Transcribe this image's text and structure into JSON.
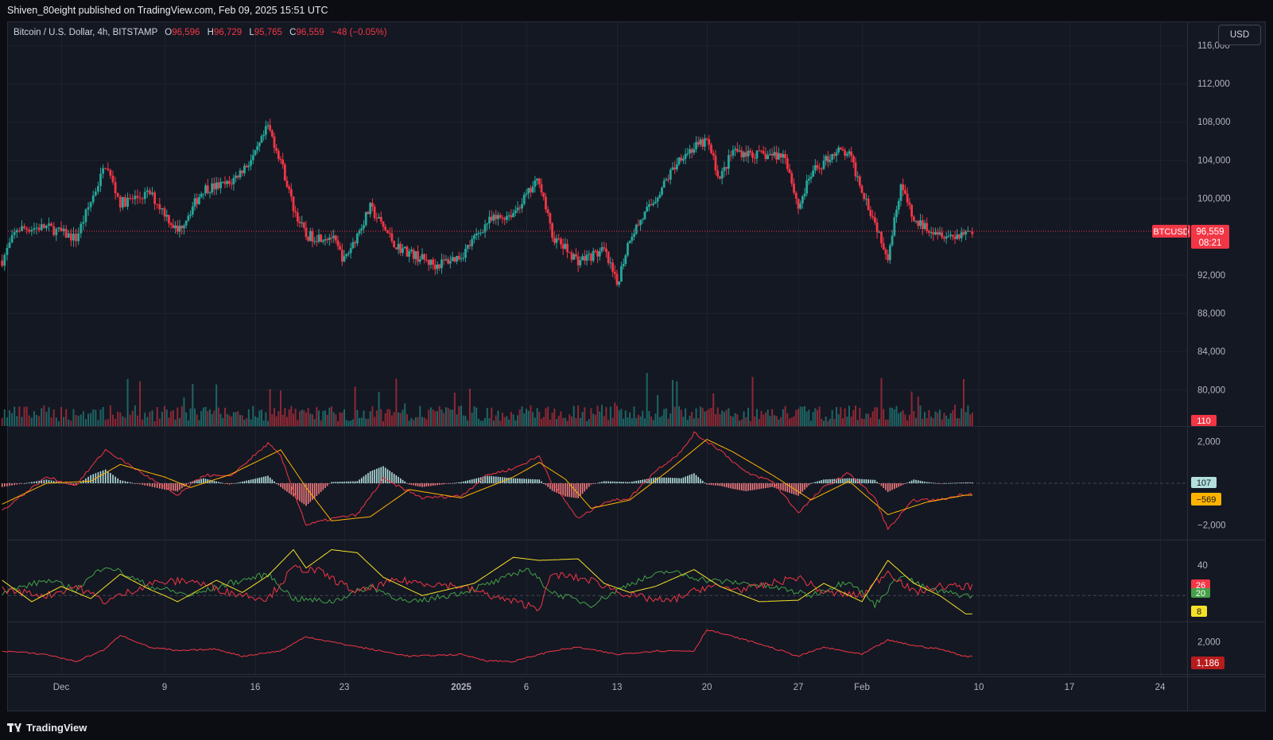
{
  "header": {
    "publisher_line": "Shiven_80eight published on TradingView.com, Feb 09, 2025 15:51 UTC"
  },
  "legend": {
    "symbol": "Bitcoin / U.S. Dollar, 4h, BITSTAMP",
    "o_label": "O",
    "o_value": "96,596",
    "h_label": "H",
    "h_value": "96,729",
    "l_label": "L",
    "l_value": "95,765",
    "c_label": "C",
    "c_value": "96,559",
    "change": "−48 (−0.05%)"
  },
  "currency_button": "USD",
  "brand": {
    "name": "TradingView"
  },
  "colors": {
    "up": "#26a69a",
    "down": "#f23645",
    "macd_line": "#f23645",
    "signal_line": "#ffb300",
    "adx": "#f5e028",
    "di_plus": "#43a047",
    "di_minus": "#f23645",
    "bg": "#141823",
    "grid": "#1e222d"
  },
  "chart_data": [
    {
      "type": "candlestick",
      "symbol": "BTCUSD",
      "interval": "4h",
      "exchange": "BITSTAMP",
      "y_ticks": [
        80000,
        84000,
        88000,
        92000,
        96000,
        100000,
        104000,
        108000,
        112000,
        116000
      ],
      "y_tick_labels": [
        "80,000",
        "84,000",
        "88,000",
        "92,000",
        "96,000",
        "100,000",
        "104,000",
        "108,000",
        "112,000",
        "116,000"
      ],
      "ylim": [
        76200,
        118400
      ],
      "x_labels": [
        "Dec",
        "9",
        "16",
        "23",
        "2025",
        "6",
        "13",
        "20",
        "27",
        "Feb",
        "10",
        "17",
        "24"
      ],
      "price_path": [
        {
          "t": "2024-11-28",
          "p": 93500
        },
        {
          "t": "2024-11-29",
          "p": 96800
        },
        {
          "t": "2024-12-01",
          "p": 97000
        },
        {
          "t": "2024-12-03",
          "p": 95800
        },
        {
          "t": "2024-12-05",
          "p": 103500
        },
        {
          "t": "2024-12-06",
          "p": 99500
        },
        {
          "t": "2024-12-08",
          "p": 100500
        },
        {
          "t": "2024-12-10",
          "p": 96500
        },
        {
          "t": "2024-12-12",
          "p": 101000
        },
        {
          "t": "2024-12-14",
          "p": 101500
        },
        {
          "t": "2024-12-16",
          "p": 104500
        },
        {
          "t": "2024-12-17",
          "p": 107500
        },
        {
          "t": "2024-12-18",
          "p": 104000
        },
        {
          "t": "2024-12-19",
          "p": 99000
        },
        {
          "t": "2024-12-20",
          "p": 96000
        },
        {
          "t": "2024-12-22",
          "p": 96000
        },
        {
          "t": "2024-12-23",
          "p": 93500
        },
        {
          "t": "2024-12-25",
          "p": 99000
        },
        {
          "t": "2024-12-27",
          "p": 95000
        },
        {
          "t": "2024-12-30",
          "p": 93000
        },
        {
          "t": "2025-01-01",
          "p": 94000
        },
        {
          "t": "2025-01-03",
          "p": 97500
        },
        {
          "t": "2025-01-05",
          "p": 98500
        },
        {
          "t": "2025-01-07",
          "p": 102000
        },
        {
          "t": "2025-01-08",
          "p": 96000
        },
        {
          "t": "2025-01-10",
          "p": 93500
        },
        {
          "t": "2025-01-12",
          "p": 94500
        },
        {
          "t": "2025-01-13",
          "p": 91000
        },
        {
          "t": "2025-01-14",
          "p": 96000
        },
        {
          "t": "2025-01-16",
          "p": 100000
        },
        {
          "t": "2025-01-18",
          "p": 104500
        },
        {
          "t": "2025-01-20",
          "p": 106000
        },
        {
          "t": "2025-01-21",
          "p": 102000
        },
        {
          "t": "2025-01-22",
          "p": 105000
        },
        {
          "t": "2025-01-24",
          "p": 104500
        },
        {
          "t": "2025-01-26",
          "p": 104500
        },
        {
          "t": "2025-01-27",
          "p": 99000
        },
        {
          "t": "2025-01-28",
          "p": 102500
        },
        {
          "t": "2025-01-30",
          "p": 105000
        },
        {
          "t": "2025-01-31",
          "p": 104500
        },
        {
          "t": "2025-02-01",
          "p": 101000
        },
        {
          "t": "2025-02-03",
          "p": 94000
        },
        {
          "t": "2025-02-04",
          "p": 101500
        },
        {
          "t": "2025-02-05",
          "p": 97500
        },
        {
          "t": "2025-02-06",
          "p": 97000
        },
        {
          "t": "2025-02-07",
          "p": 96500
        },
        {
          "t": "2025-02-08",
          "p": 96000
        },
        {
          "t": "2025-02-09",
          "p": 96559
        }
      ],
      "last_price": 96559,
      "last_price_label": "96,559",
      "price_label_name": "BTCUSD",
      "countdown": "08:21"
    },
    {
      "type": "bar",
      "name": "Volume",
      "last_value_label": "110"
    },
    {
      "type": "line",
      "name": "MACD",
      "y_tick_labels": [
        "2,000",
        "−2,000"
      ],
      "ylim": [
        -2700,
        2700
      ],
      "macd_path": [
        {
          "t": "2024-11-28",
          "v": -1300
        },
        {
          "t": "2024-12-01",
          "v": 300
        },
        {
          "t": "2024-12-03",
          "v": -100
        },
        {
          "t": "2024-12-05",
          "v": 1600
        },
        {
          "t": "2024-12-07",
          "v": 700
        },
        {
          "t": "2024-12-09",
          "v": -200
        },
        {
          "t": "2024-12-10",
          "v": -600
        },
        {
          "t": "2024-12-12",
          "v": 400
        },
        {
          "t": "2024-12-14",
          "v": 300
        },
        {
          "t": "2024-12-17",
          "v": 1900
        },
        {
          "t": "2024-12-18",
          "v": 1300
        },
        {
          "t": "2024-12-20",
          "v": -2000
        },
        {
          "t": "2024-12-22",
          "v": -1700
        },
        {
          "t": "2024-12-24",
          "v": -1500
        },
        {
          "t": "2024-12-26",
          "v": 200
        },
        {
          "t": "2024-12-29",
          "v": -700
        },
        {
          "t": "2025-01-01",
          "v": -600
        },
        {
          "t": "2025-01-03",
          "v": 400
        },
        {
          "t": "2025-01-05",
          "v": 700
        },
        {
          "t": "2025-01-07",
          "v": 1300
        },
        {
          "t": "2025-01-08",
          "v": 0
        },
        {
          "t": "2025-01-10",
          "v": -1700
        },
        {
          "t": "2025-01-12",
          "v": -900
        },
        {
          "t": "2025-01-14",
          "v": -700
        },
        {
          "t": "2025-01-16",
          "v": 600
        },
        {
          "t": "2025-01-18",
          "v": 1500
        },
        {
          "t": "2025-01-19",
          "v": 2400
        },
        {
          "t": "2025-01-21",
          "v": 1600
        },
        {
          "t": "2025-01-23",
          "v": 500
        },
        {
          "t": "2025-01-25",
          "v": 100
        },
        {
          "t": "2025-01-27",
          "v": -1400
        },
        {
          "t": "2025-01-29",
          "v": -200
        },
        {
          "t": "2025-01-31",
          "v": 500
        },
        {
          "t": "2025-02-02",
          "v": -700
        },
        {
          "t": "2025-02-03",
          "v": -2200
        },
        {
          "t": "2025-02-05",
          "v": -800
        },
        {
          "t": "2025-02-07",
          "v": -800
        },
        {
          "t": "2025-02-09",
          "v": -500
        }
      ],
      "signal_path": [
        {
          "t": "2024-11-28",
          "v": -1000
        },
        {
          "t": "2024-12-01",
          "v": 0
        },
        {
          "t": "2024-12-04",
          "v": 100
        },
        {
          "t": "2024-12-06",
          "v": 900
        },
        {
          "t": "2024-12-09",
          "v": 300
        },
        {
          "t": "2024-12-11",
          "v": -200
        },
        {
          "t": "2024-12-14",
          "v": 400
        },
        {
          "t": "2024-12-18",
          "v": 1600
        },
        {
          "t": "2024-12-20",
          "v": -200
        },
        {
          "t": "2024-12-22",
          "v": -1800
        },
        {
          "t": "2024-12-25",
          "v": -1600
        },
        {
          "t": "2024-12-28",
          "v": -300
        },
        {
          "t": "2025-01-01",
          "v": -700
        },
        {
          "t": "2025-01-05",
          "v": 300
        },
        {
          "t": "2025-01-07",
          "v": 1000
        },
        {
          "t": "2025-01-09",
          "v": 200
        },
        {
          "t": "2025-01-11",
          "v": -1200
        },
        {
          "t": "2025-01-14",
          "v": -800
        },
        {
          "t": "2025-01-17",
          "v": 600
        },
        {
          "t": "2025-01-20",
          "v": 2100
        },
        {
          "t": "2025-01-22",
          "v": 1500
        },
        {
          "t": "2025-01-25",
          "v": 400
        },
        {
          "t": "2025-01-28",
          "v": -800
        },
        {
          "t": "2025-01-31",
          "v": 100
        },
        {
          "t": "2025-02-03",
          "v": -1500
        },
        {
          "t": "2025-02-06",
          "v": -900
        },
        {
          "t": "2025-02-09",
          "v": -569
        }
      ],
      "histogram_last_label": "107",
      "signal_last_label": "−569"
    },
    {
      "type": "line",
      "name": "DMI",
      "y_tick_labels": [
        "40"
      ],
      "ylim": [
        3,
        56
      ],
      "adx_path": [
        {
          "t": "2024-11-28",
          "v": 30
        },
        {
          "t": "2024-11-30",
          "v": 16
        },
        {
          "t": "2024-12-02",
          "v": 26
        },
        {
          "t": "2024-12-04",
          "v": 18
        },
        {
          "t": "2024-12-06",
          "v": 34
        },
        {
          "t": "2024-12-08",
          "v": 24
        },
        {
          "t": "2024-12-10",
          "v": 16
        },
        {
          "t": "2024-12-13",
          "v": 30
        },
        {
          "t": "2024-12-15",
          "v": 22
        },
        {
          "t": "2024-12-17",
          "v": 33
        },
        {
          "t": "2024-12-19",
          "v": 50
        },
        {
          "t": "2024-12-20",
          "v": 38
        },
        {
          "t": "2024-12-22",
          "v": 50
        },
        {
          "t": "2024-12-24",
          "v": 48
        },
        {
          "t": "2024-12-26",
          "v": 32
        },
        {
          "t": "2024-12-29",
          "v": 20
        },
        {
          "t": "2025-01-02",
          "v": 28
        },
        {
          "t": "2025-01-05",
          "v": 45
        },
        {
          "t": "2025-01-07",
          "v": 43
        },
        {
          "t": "2025-01-10",
          "v": 44
        },
        {
          "t": "2025-01-12",
          "v": 28
        },
        {
          "t": "2025-01-14",
          "v": 22
        },
        {
          "t": "2025-01-16",
          "v": 26
        },
        {
          "t": "2025-01-19",
          "v": 37
        },
        {
          "t": "2025-01-21",
          "v": 26
        },
        {
          "t": "2025-01-24",
          "v": 16
        },
        {
          "t": "2025-01-27",
          "v": 17
        },
        {
          "t": "2025-01-29",
          "v": 28
        },
        {
          "t": "2025-02-01",
          "v": 16
        },
        {
          "t": "2025-02-03",
          "v": 43
        },
        {
          "t": "2025-02-05",
          "v": 28
        },
        {
          "t": "2025-02-07",
          "v": 20
        },
        {
          "t": "2025-02-09",
          "v": 8
        }
      ],
      "di_plus_path": [
        {
          "t": "2024-11-28",
          "v": 22
        },
        {
          "t": "2024-12-01",
          "v": 30
        },
        {
          "t": "2024-12-03",
          "v": 24
        },
        {
          "t": "2024-12-05",
          "v": 40
        },
        {
          "t": "2024-12-08",
          "v": 26
        },
        {
          "t": "2024-12-11",
          "v": 20
        },
        {
          "t": "2024-12-14",
          "v": 28
        },
        {
          "t": "2024-12-17",
          "v": 34
        },
        {
          "t": "2024-12-19",
          "v": 18
        },
        {
          "t": "2024-12-22",
          "v": 16
        },
        {
          "t": "2024-12-25",
          "v": 26
        },
        {
          "t": "2024-12-28",
          "v": 15
        },
        {
          "t": "2025-01-01",
          "v": 22
        },
        {
          "t": "2025-01-04",
          "v": 30
        },
        {
          "t": "2025-01-06",
          "v": 38
        },
        {
          "t": "2025-01-08",
          "v": 22
        },
        {
          "t": "2025-01-11",
          "v": 14
        },
        {
          "t": "2025-01-14",
          "v": 28
        },
        {
          "t": "2025-01-17",
          "v": 36
        },
        {
          "t": "2025-01-20",
          "v": 30
        },
        {
          "t": "2025-01-23",
          "v": 28
        },
        {
          "t": "2025-01-26",
          "v": 24
        },
        {
          "t": "2025-01-28",
          "v": 20
        },
        {
          "t": "2025-01-31",
          "v": 30
        },
        {
          "t": "2025-02-02",
          "v": 14
        },
        {
          "t": "2025-02-04",
          "v": 34
        },
        {
          "t": "2025-02-06",
          "v": 24
        },
        {
          "t": "2025-02-09",
          "v": 20
        }
      ],
      "di_minus_path": [
        {
          "t": "2024-11-28",
          "v": 24
        },
        {
          "t": "2024-12-01",
          "v": 20
        },
        {
          "t": "2024-12-03",
          "v": 26
        },
        {
          "t": "2024-12-05",
          "v": 16
        },
        {
          "t": "2024-12-08",
          "v": 28
        },
        {
          "t": "2024-12-11",
          "v": 30
        },
        {
          "t": "2024-12-14",
          "v": 22
        },
        {
          "t": "2024-12-17",
          "v": 18
        },
        {
          "t": "2024-12-19",
          "v": 38
        },
        {
          "t": "2024-12-21",
          "v": 36
        },
        {
          "t": "2024-12-24",
          "v": 22
        },
        {
          "t": "2024-12-27",
          "v": 30
        },
        {
          "t": "2025-01-01",
          "v": 26
        },
        {
          "t": "2025-01-04",
          "v": 18
        },
        {
          "t": "2025-01-07",
          "v": 12
        },
        {
          "t": "2025-01-08",
          "v": 34
        },
        {
          "t": "2025-01-11",
          "v": 30
        },
        {
          "t": "2025-01-14",
          "v": 20
        },
        {
          "t": "2025-01-17",
          "v": 16
        },
        {
          "t": "2025-01-20",
          "v": 26
        },
        {
          "t": "2025-01-23",
          "v": 24
        },
        {
          "t": "2025-01-27",
          "v": 32
        },
        {
          "t": "2025-01-29",
          "v": 22
        },
        {
          "t": "2025-02-01",
          "v": 20
        },
        {
          "t": "2025-02-03",
          "v": 36
        },
        {
          "t": "2025-02-05",
          "v": 22
        },
        {
          "t": "2025-02-07",
          "v": 26
        },
        {
          "t": "2025-02-09",
          "v": 26
        }
      ],
      "di_minus_last_label": "26",
      "di_plus_last_label": "20",
      "adx_last_label": "8"
    },
    {
      "type": "line",
      "name": "ATR",
      "y_tick_labels": [
        "2,000"
      ],
      "ylim": [
        200,
        3100
      ],
      "atr_path": [
        {
          "t": "2024-11-28",
          "v": 1500
        },
        {
          "t": "2024-12-01",
          "v": 1300
        },
        {
          "t": "2024-12-03",
          "v": 900
        },
        {
          "t": "2024-12-05",
          "v": 1600
        },
        {
          "t": "2024-12-06",
          "v": 2400
        },
        {
          "t": "2024-12-08",
          "v": 1700
        },
        {
          "t": "2024-12-10",
          "v": 1500
        },
        {
          "t": "2024-12-13",
          "v": 1600
        },
        {
          "t": "2024-12-15",
          "v": 1200
        },
        {
          "t": "2024-12-18",
          "v": 1500
        },
        {
          "t": "2024-12-20",
          "v": 2300
        },
        {
          "t": "2024-12-22",
          "v": 2000
        },
        {
          "t": "2024-12-25",
          "v": 1600
        },
        {
          "t": "2024-12-28",
          "v": 1200
        },
        {
          "t": "2025-01-01",
          "v": 1300
        },
        {
          "t": "2025-01-03",
          "v": 950
        },
        {
          "t": "2025-01-05",
          "v": 900
        },
        {
          "t": "2025-01-08",
          "v": 1500
        },
        {
          "t": "2025-01-10",
          "v": 1700
        },
        {
          "t": "2025-01-13",
          "v": 1300
        },
        {
          "t": "2025-01-16",
          "v": 1500
        },
        {
          "t": "2025-01-19",
          "v": 1500
        },
        {
          "t": "2025-01-20",
          "v": 2700
        },
        {
          "t": "2025-01-22",
          "v": 2300
        },
        {
          "t": "2025-01-24",
          "v": 1900
        },
        {
          "t": "2025-01-27",
          "v": 1200
        },
        {
          "t": "2025-01-29",
          "v": 1700
        },
        {
          "t": "2025-02-01",
          "v": 1300
        },
        {
          "t": "2025-02-03",
          "v": 2100
        },
        {
          "t": "2025-02-05",
          "v": 1800
        },
        {
          "t": "2025-02-07",
          "v": 1600
        },
        {
          "t": "2025-02-09",
          "v": 1186
        }
      ],
      "last_value_label": "1,186"
    }
  ]
}
